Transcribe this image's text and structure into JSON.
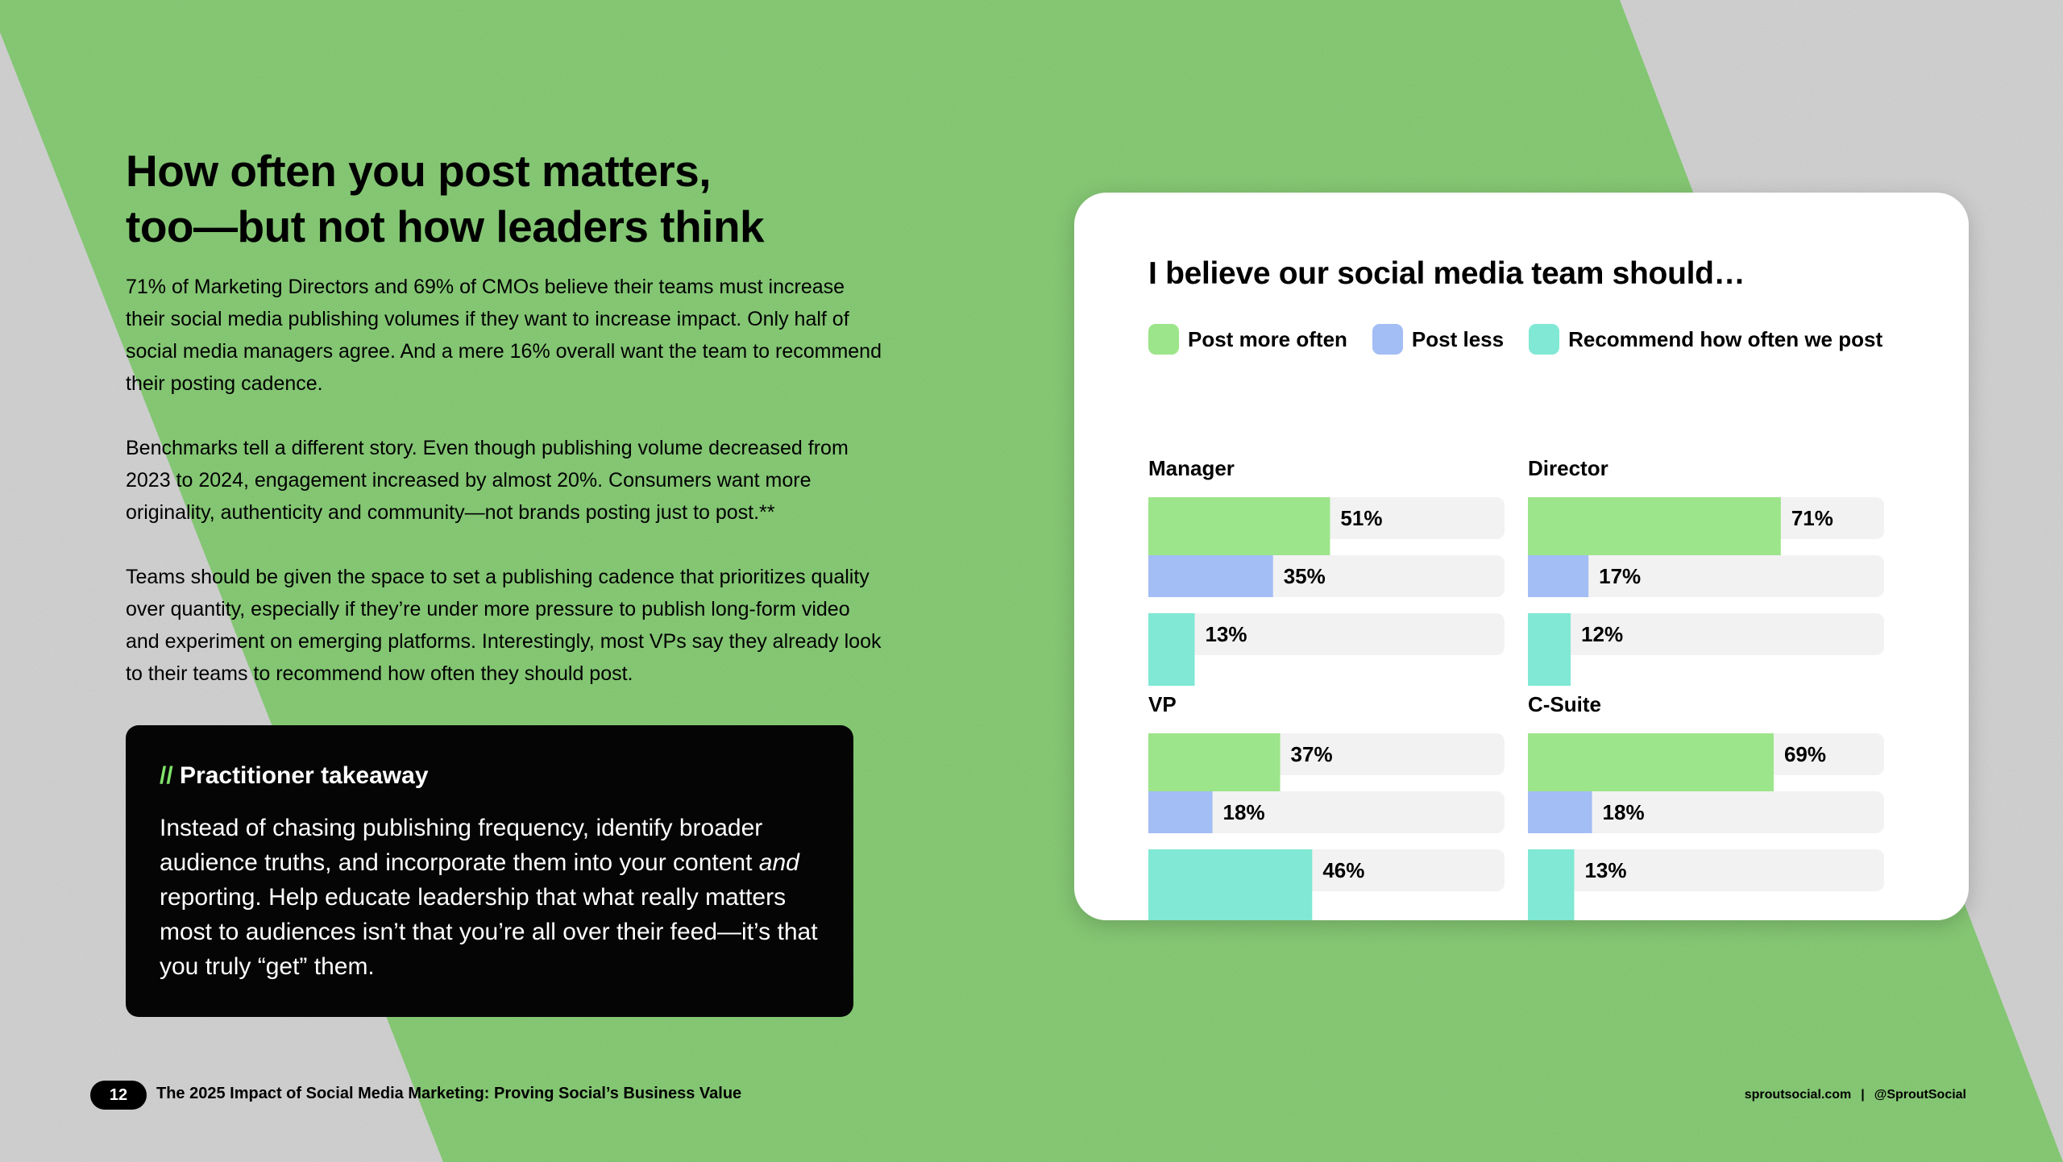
{
  "page": {
    "headline": [
      "How often you post matters,",
      "too—but not how leaders think"
    ],
    "paragraphs": [
      "71% of Marketing Directors and 69% of CMOs believe their teams must increase their social media publishing volumes if they want to increase impact. Only half of social media managers agree. And a mere 16% overall want the team to recommend their posting cadence.",
      "Benchmarks tell a different story. Even though publishing volume decreased from 2023 to 2024, engagement increased by almost 20%. Consumers want more originality, authenticity and community—not brands posting just to post.**",
      "Teams should be given the space to set a publishing cadence that prioritizes quality over quantity, especially if they’re under more pressure to publish long-form video and experiment on emerging platforms. Interestingly, most VPs say they already look to their teams to recommend how often they should post."
    ],
    "takeaway": {
      "slashes": "//",
      "title": "Practitioner takeaway",
      "body_before": "Instead of chasing publishing frequency, identify broader audience truths, and incorporate them into your content ",
      "body_em": "and",
      "body_after": " reporting. Help educate leadership that what really matters most to audiences isn’t that you’re all over their feed—it’s that you truly “get” them."
    },
    "footer": {
      "page_number": "12",
      "report_title": "The 2025 Impact of Social Media Marketing: Proving Social’s Business Value",
      "site": "sproutsocial.com",
      "separator": "|",
      "handle": "@SproutSocial"
    }
  },
  "colors": {
    "background_green": "#7dc76a",
    "background_gray": "#cfcfcf",
    "post_more": "#9ce58a",
    "post_less": "#a3bdf5",
    "recommend": "#80e8d4",
    "track": "#f1f2f1"
  },
  "chart_data": {
    "type": "bar",
    "orientation": "horizontal",
    "title": "I believe our social media team should…",
    "series": [
      {
        "name": "Post more often",
        "color": "#9ce58a"
      },
      {
        "name": "Post less",
        "color": "#a3bdf5"
      },
      {
        "name": "Recommend how often we post",
        "color": "#80e8d4"
      }
    ],
    "unit": "%",
    "xlim": [
      0,
      100
    ],
    "panels": [
      {
        "label": "Manager",
        "values": [
          51,
          35,
          13
        ]
      },
      {
        "label": "Director",
        "values": [
          71,
          17,
          12
        ]
      },
      {
        "label": "VP",
        "values": [
          37,
          18,
          46
        ]
      },
      {
        "label": "C-Suite",
        "values": [
          69,
          18,
          13
        ]
      }
    ]
  }
}
